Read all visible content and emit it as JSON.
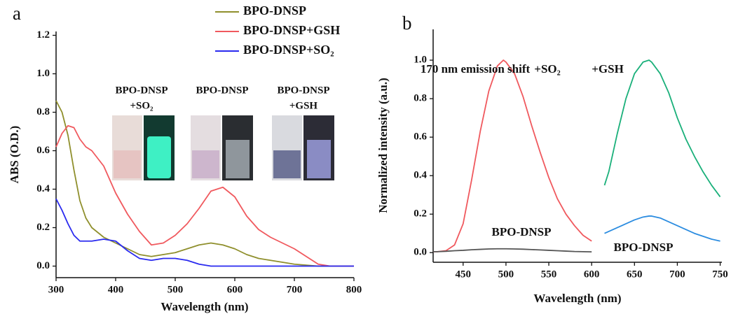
{
  "chart_data": [
    {
      "type": "line",
      "panel_label": "a",
      "x_label": "Wavelength (nm)",
      "y_label": "ABS (O.D.)",
      "xlim": [
        300,
        800
      ],
      "xticks": [
        300,
        400,
        500,
        600,
        700,
        800
      ],
      "ylim": [
        -0.06,
        1.22
      ],
      "yticks": [
        {
          "value": 0,
          "label": "0.0"
        },
        0.2,
        0.4,
        0.6,
        0.8,
        {
          "value": 1,
          "label": "1.0"
        },
        1.2
      ],
      "legend": "upper right",
      "x": [
        300,
        310,
        320,
        330,
        340,
        350,
        360,
        380,
        400,
        420,
        440,
        460,
        480,
        500,
        520,
        540,
        560,
        580,
        600,
        620,
        640,
        660,
        680,
        700,
        720,
        740,
        760,
        800
      ],
      "series": [
        {
          "name": "BPO-DNSP",
          "color": "#8f8f2c",
          "values": [
            0.86,
            0.8,
            0.68,
            0.5,
            0.34,
            0.25,
            0.2,
            0.15,
            0.12,
            0.09,
            0.06,
            0.05,
            0.06,
            0.07,
            0.09,
            0.11,
            0.12,
            0.11,
            0.09,
            0.06,
            0.04,
            0.03,
            0.02,
            0.01,
            0.005,
            0,
            0,
            0
          ]
        },
        {
          "name": "BPO-DNSP+GSH",
          "color": "#f0595e",
          "values": [
            0.62,
            0.69,
            0.73,
            0.72,
            0.66,
            0.62,
            0.6,
            0.52,
            0.38,
            0.27,
            0.18,
            0.11,
            0.12,
            0.16,
            0.22,
            0.3,
            0.39,
            0.41,
            0.36,
            0.26,
            0.19,
            0.15,
            0.12,
            0.09,
            0.05,
            0.01,
            0,
            0
          ]
        },
        {
          "name": "BPO-DNSP+SO₂",
          "color": "#2a2aef",
          "values": [
            0.35,
            0.29,
            0.22,
            0.16,
            0.13,
            0.13,
            0.13,
            0.14,
            0.13,
            0.08,
            0.04,
            0.03,
            0.04,
            0.04,
            0.03,
            0.01,
            0,
            0,
            0,
            0,
            0,
            0,
            0,
            0,
            0,
            0,
            0,
            0
          ]
        }
      ],
      "annotations": [
        "BPO-DNSP",
        "+SO₂",
        "BPO-DNSP",
        "BPO-DNSP",
        "+GSH"
      ]
    },
    {
      "type": "line",
      "panel_label": "b",
      "x_label": "Wavelength (nm)",
      "y_label": "Normalized intensity (a.u.)",
      "xlim": [
        415,
        752
      ],
      "xticks": [
        450,
        500,
        550,
        600,
        650,
        700,
        750
      ],
      "ylim": [
        -0.05,
        1.16
      ],
      "yticks": [
        {
          "value": 0,
          "label": "0.0"
        },
        0.2,
        0.4,
        0.6,
        0.8,
        {
          "value": 1,
          "label": "1.0"
        }
      ],
      "x": [
        415,
        420,
        430,
        440,
        450,
        460,
        470,
        480,
        490,
        497,
        500,
        510,
        520,
        530,
        540,
        550,
        560,
        570,
        580,
        590,
        600,
        615,
        620,
        630,
        640,
        650,
        660,
        667,
        670,
        680,
        690,
        700,
        710,
        720,
        730,
        740,
        750
      ],
      "series": [
        {
          "color": "#f0595e",
          "values": [
            0.005,
            0.005,
            0.01,
            0.04,
            0.15,
            0.38,
            0.63,
            0.84,
            0.97,
            1.0,
            0.99,
            0.93,
            0.81,
            0.66,
            0.52,
            0.39,
            0.28,
            0.2,
            0.14,
            0.09,
            0.06,
            null,
            null,
            null,
            null,
            null,
            null,
            null,
            null,
            null,
            null,
            null,
            null,
            null,
            null,
            null,
            null
          ]
        },
        {
          "color": "#555555",
          "values": [
            0.005,
            0.005,
            0.007,
            0.01,
            0.012,
            0.015,
            0.017,
            0.019,
            0.02,
            0.02,
            0.02,
            0.019,
            0.018,
            0.016,
            0.014,
            0.012,
            0.01,
            0.008,
            0.006,
            0.005,
            0.004,
            null,
            null,
            null,
            null,
            null,
            null,
            null,
            null,
            null,
            null,
            null,
            null,
            null,
            null,
            null,
            null
          ]
        },
        {
          "color": "#1ab07a",
          "values": [
            null,
            null,
            null,
            null,
            null,
            null,
            null,
            null,
            null,
            null,
            null,
            null,
            null,
            null,
            null,
            null,
            null,
            null,
            null,
            null,
            null,
            0.35,
            0.42,
            0.62,
            0.8,
            0.93,
            0.99,
            1.0,
            0.99,
            0.93,
            0.83,
            0.7,
            0.59,
            0.5,
            0.42,
            0.35,
            0.29
          ]
        },
        {
          "color": "#2b8ce0",
          "values": [
            null,
            null,
            null,
            null,
            null,
            null,
            null,
            null,
            null,
            null,
            null,
            null,
            null,
            null,
            null,
            null,
            null,
            null,
            null,
            null,
            null,
            0.1,
            0.11,
            0.13,
            0.15,
            0.17,
            0.185,
            0.19,
            0.19,
            0.18,
            0.16,
            0.14,
            0.12,
            0.1,
            0.085,
            0.07,
            0.06
          ]
        }
      ],
      "annotations": [
        "170 nm emission shift",
        "+SO₂",
        "+GSH",
        "BPO-DNSP",
        "BPO-DNSP"
      ]
    }
  ]
}
